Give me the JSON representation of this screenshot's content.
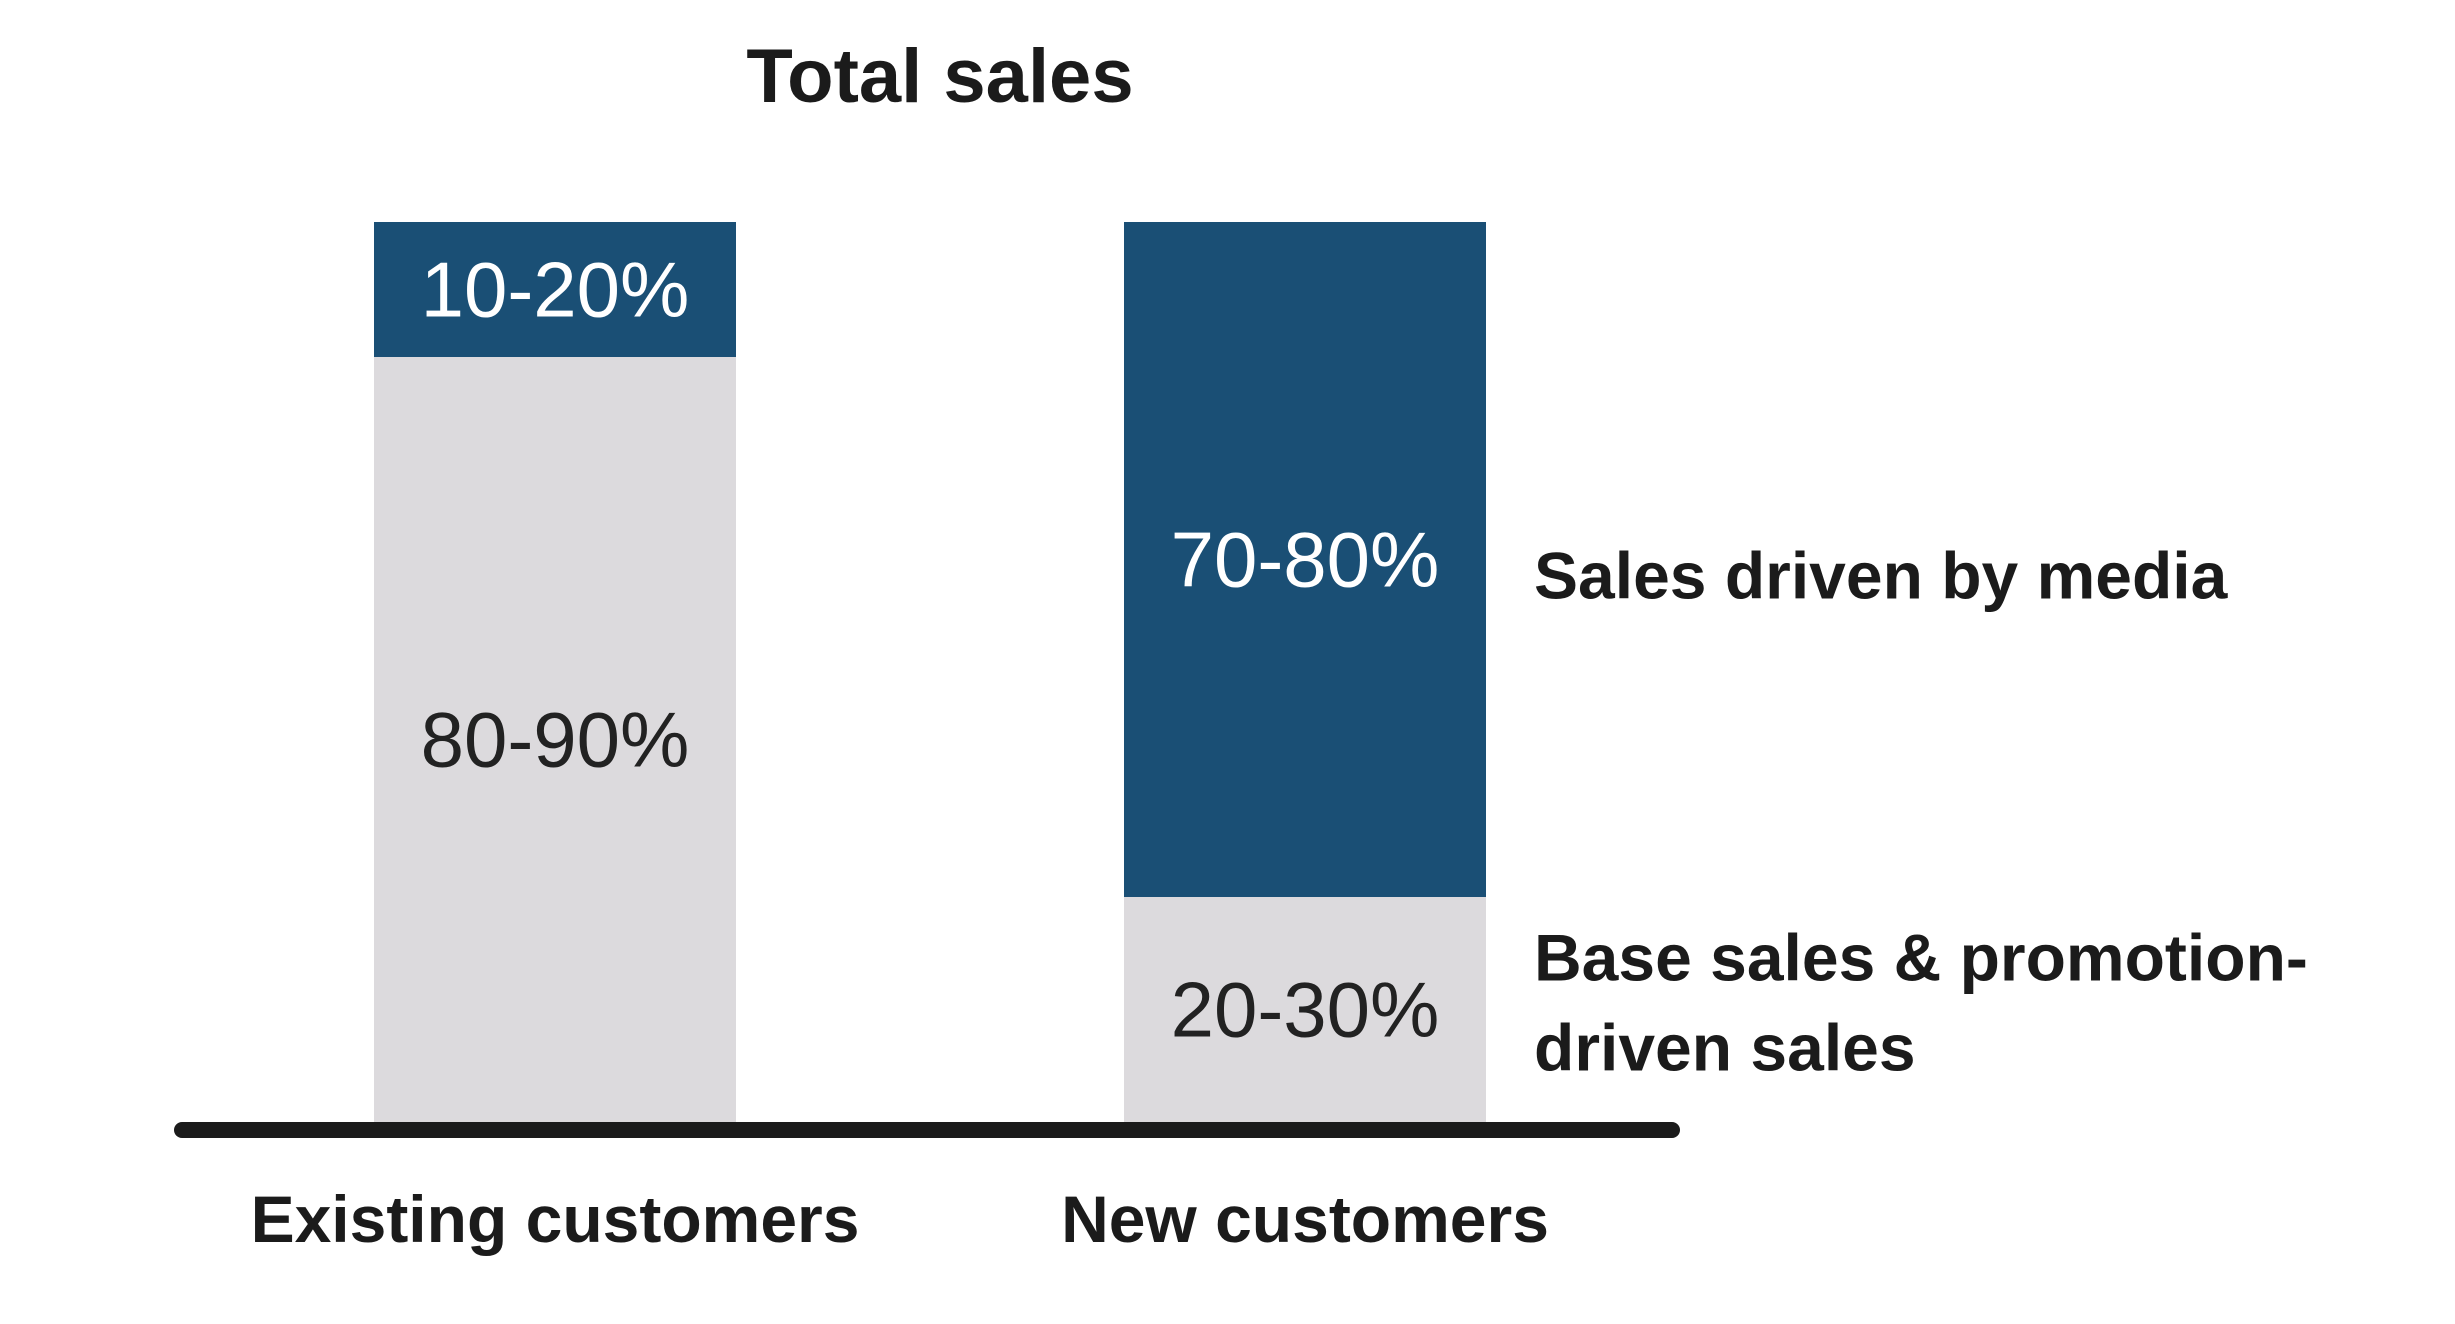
{
  "chart_data": {
    "type": "bar",
    "stacked": true,
    "normalized": true,
    "title": "Total sales",
    "categories": [
      "Existing customers",
      "New customers"
    ],
    "series": [
      {
        "name": "Base sales & promotion-driven sales",
        "labels": [
          "80-90%",
          "20-30%"
        ],
        "values": [
          85,
          25
        ],
        "color": "#dcdadd",
        "text_color": "#222222"
      },
      {
        "name": "Sales driven by media",
        "labels": [
          "10-20%",
          "70-80%"
        ],
        "values": [
          15,
          75
        ],
        "color": "#1a4f75",
        "text_color": "#ffffff"
      }
    ],
    "legend": {
      "placement": "right of bars",
      "entries": [
        "Sales driven by media",
        "Base sales & promotion-driven sales"
      ]
    },
    "xlabel": "",
    "ylabel": "",
    "ylim": [
      0,
      100
    ],
    "grid": false,
    "baseline_color": "#1b1b1b"
  }
}
